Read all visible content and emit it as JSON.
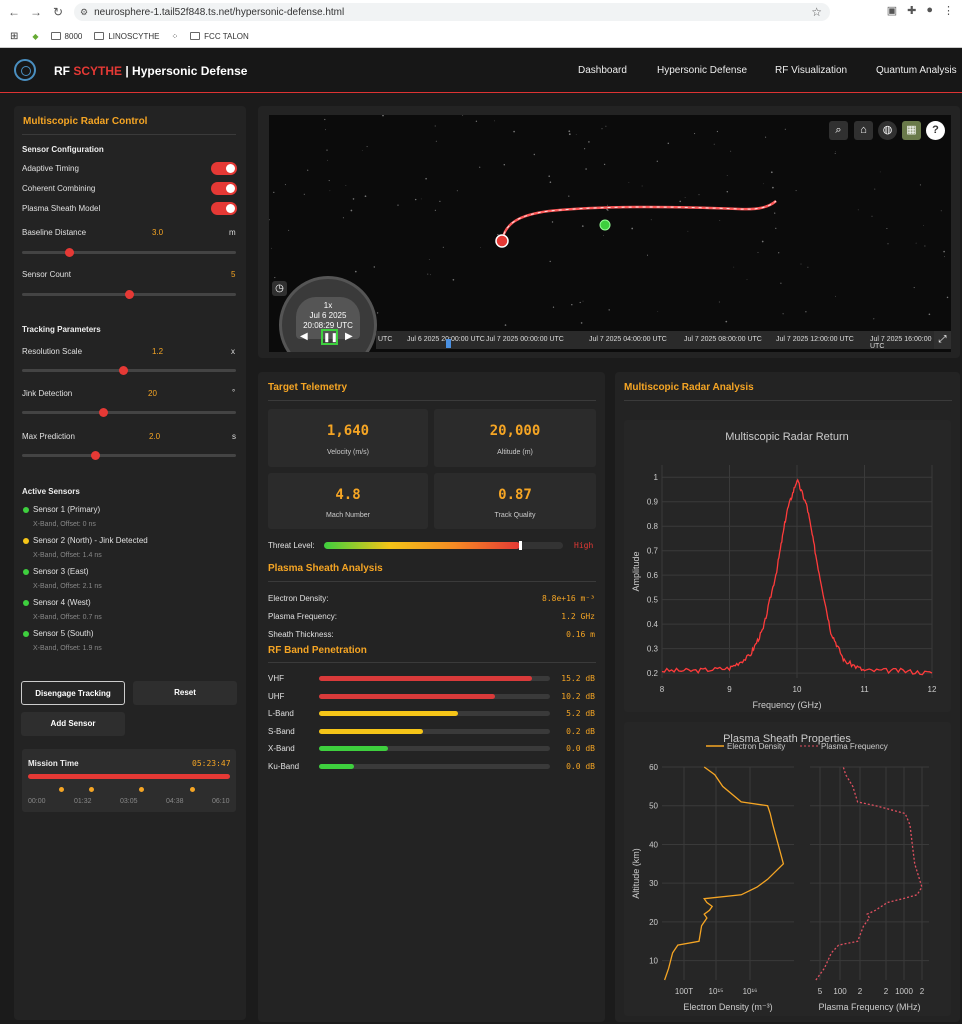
{
  "browser": {
    "url": "neurosphere-1.tail52f848.ts.net/hypersonic-defense.html",
    "bookmarks": [
      "8000",
      "LINOSCYTHE",
      "FCC TALON"
    ]
  },
  "header": {
    "brand_prefix": "RF ",
    "brand_red": "SCYTHE",
    "brand_suffix": " | Hypersonic Defense",
    "nav": [
      "Dashboard",
      "Hypersonic Defense",
      "RF Visualization",
      "Quantum Analysis"
    ]
  },
  "control": {
    "title": "Multiscopic Radar Control",
    "sensor_config": "Sensor Configuration",
    "toggles": [
      {
        "label": "Adaptive Timing",
        "on": true
      },
      {
        "label": "Coherent Combining",
        "on": true
      },
      {
        "label": "Plasma Sheath Model",
        "on": true
      }
    ],
    "baseline": {
      "label": "Baseline Distance",
      "value": "3.0",
      "unit": "m",
      "level": 0.22
    },
    "count": {
      "label": "Sensor Count",
      "value": "5",
      "level": 0.5
    },
    "tracking": "Tracking Parameters",
    "resolution": {
      "label": "Resolution Scale",
      "value": "1.2",
      "unit": "x",
      "level": 0.47
    },
    "jink": {
      "label": "Jink Detection",
      "value": "20",
      "unit": "°",
      "level": 0.38
    },
    "prediction": {
      "label": "Max Prediction",
      "value": "2.0",
      "unit": "s",
      "level": 0.34
    },
    "active_title": "Active Sensors",
    "sensors": [
      {
        "name": "Sensor 1 (Primary)",
        "detail": "X-Band, Offset: 0 ns",
        "color": "#3ecf3e"
      },
      {
        "name": "Sensor 2 (North) - Jink Detected",
        "detail": "X-Band, Offset: 1.4 ns",
        "color": "#f5c518"
      },
      {
        "name": "Sensor 3 (East)",
        "detail": "X-Band, Offset: 2.1 ns",
        "color": "#3ecf3e"
      },
      {
        "name": "Sensor 4 (West)",
        "detail": "X-Band, Offset: 0.7 ns",
        "color": "#3ecf3e"
      },
      {
        "name": "Sensor 5 (South)",
        "detail": "X-Band, Offset: 1.9 ns",
        "color": "#3ecf3e"
      }
    ],
    "disengage": "Disengage Tracking",
    "reset": "Reset",
    "add": "Add Sensor",
    "mission_label": "Mission Time",
    "mission_value": "05:23:47",
    "mission_ticks": [
      "00:00",
      "01:32",
      "03:05",
      "04:38",
      "06:10"
    ]
  },
  "globe": {
    "speed": "1x",
    "date": "Jul 6 2025",
    "time": "20:08:29 UTC",
    "timeline": [
      "UTC",
      "Jul 6 2025 20:00:00 UTC",
      "Jul 7 2025 00:00:00 UTC",
      "Jul 7 2025 04:00:00 UTC",
      "Jul 7 2025 08:00:00 UTC",
      "Jul 7 2025 12:00:00 UTC",
      "Jul 7 2025 16:00:00 UTC"
    ]
  },
  "telemetry": {
    "title": "Target Telemetry",
    "cards": [
      {
        "value": "1,640",
        "label": "Velocity (m/s)"
      },
      {
        "value": "20,000",
        "label": "Altitude (m)"
      },
      {
        "value": "4.8",
        "label": "Mach Number"
      },
      {
        "value": "0.87",
        "label": "Track Quality"
      }
    ],
    "threat_label": "Threat Level:",
    "threat_value": "High",
    "threat_level": 0.82
  },
  "plasma": {
    "title": "Plasma Sheath Analysis",
    "rows": [
      {
        "label": "Electron Density:",
        "value": "8.8e+16 m⁻³"
      },
      {
        "label": "Plasma Frequency:",
        "value": "1.2 GHz"
      },
      {
        "label": "Sheath Thickness:",
        "value": "0.16 m"
      }
    ]
  },
  "bands": {
    "title": "RF Band Penetration",
    "rows": [
      {
        "label": "VHF",
        "value": "15.2 dB",
        "level": 0.92,
        "color": "#d93a3a"
      },
      {
        "label": "UHF",
        "value": "10.2 dB",
        "level": 0.76,
        "color": "#d93a3a"
      },
      {
        "label": "L-Band",
        "value": "5.2 dB",
        "level": 0.6,
        "color": "#f5c518"
      },
      {
        "label": "S-Band",
        "value": "0.2 dB",
        "level": 0.45,
        "color": "#f5c518"
      },
      {
        "label": "X-Band",
        "value": "0.0 dB",
        "level": 0.3,
        "color": "#3ecf3e"
      },
      {
        "label": "Ku-Band",
        "value": "0.0 dB",
        "level": 0.15,
        "color": "#3ecf3e"
      }
    ]
  },
  "analysis_title": "Multiscopic Radar Analysis",
  "chart_data": [
    {
      "type": "line",
      "title": "Multiscopic Radar Return",
      "xlabel": "Frequency (GHz)",
      "ylabel": "Amplitude",
      "xlim": [
        8,
        12
      ],
      "ylim": [
        0.18,
        1.05
      ],
      "x_ticks": [
        "8",
        "9",
        "10",
        "11",
        "12"
      ],
      "y_ticks": [
        "0.2",
        "0.3",
        "0.4",
        "0.5",
        "0.6",
        "0.7",
        "0.8",
        "0.9",
        "1"
      ],
      "series": [
        {
          "x": [
            8,
            8.5,
            9,
            9.3,
            9.5,
            9.7,
            9.85,
            10,
            10.15,
            10.3,
            10.5,
            10.7,
            11,
            11.5,
            12
          ],
          "y": [
            0.21,
            0.21,
            0.22,
            0.27,
            0.38,
            0.62,
            0.86,
            0.99,
            0.88,
            0.65,
            0.37,
            0.25,
            0.21,
            0.21,
            0.2
          ]
        }
      ]
    },
    {
      "type": "line",
      "title": "Plasma Sheath Properties",
      "ylabel": "Altitude (km)",
      "ylim": [
        5,
        60
      ],
      "y_ticks": [
        "10",
        "20",
        "30",
        "40",
        "50",
        "60"
      ],
      "series": [
        {
          "name": "Electron Density",
          "xlabel": "Electron Density (m⁻³)",
          "x_ticks": [
            "100T",
            "10¹⁵",
            "10¹⁶"
          ],
          "x": [
            0.02,
            0.05,
            0.08,
            0.12,
            0.28,
            0.3,
            0.34,
            0.32,
            0.36,
            0.38,
            0.34,
            0.32,
            0.6,
            0.72,
            0.8,
            0.92,
            0.88,
            0.84,
            0.82,
            0.8,
            0.6,
            0.46,
            0.4,
            0.32
          ],
          "y": [
            5,
            8,
            12,
            14,
            15,
            19,
            21,
            22,
            23,
            24,
            25,
            26,
            27,
            29,
            31,
            35,
            40,
            45,
            48,
            50,
            51,
            55,
            58,
            60
          ]
        },
        {
          "name": "Plasma Frequency",
          "xlabel": "Plasma Frequency (MHz)",
          "x_ticks": [
            "5",
            "100",
            "2",
            "2",
            "1000",
            "2"
          ],
          "x": [
            0.05,
            0.12,
            0.18,
            0.24,
            0.4,
            0.45,
            0.5,
            0.48,
            0.55,
            0.6,
            0.65,
            0.78,
            0.9,
            0.94,
            0.92,
            0.88,
            0.86,
            0.84,
            0.8,
            0.55,
            0.4,
            0.36,
            0.3,
            0.28
          ],
          "y": [
            5,
            8,
            12,
            14,
            15,
            19,
            21,
            22,
            23,
            24,
            25,
            26,
            27,
            29,
            31,
            35,
            40,
            45,
            48,
            50,
            51,
            55,
            58,
            60
          ]
        }
      ]
    }
  ]
}
